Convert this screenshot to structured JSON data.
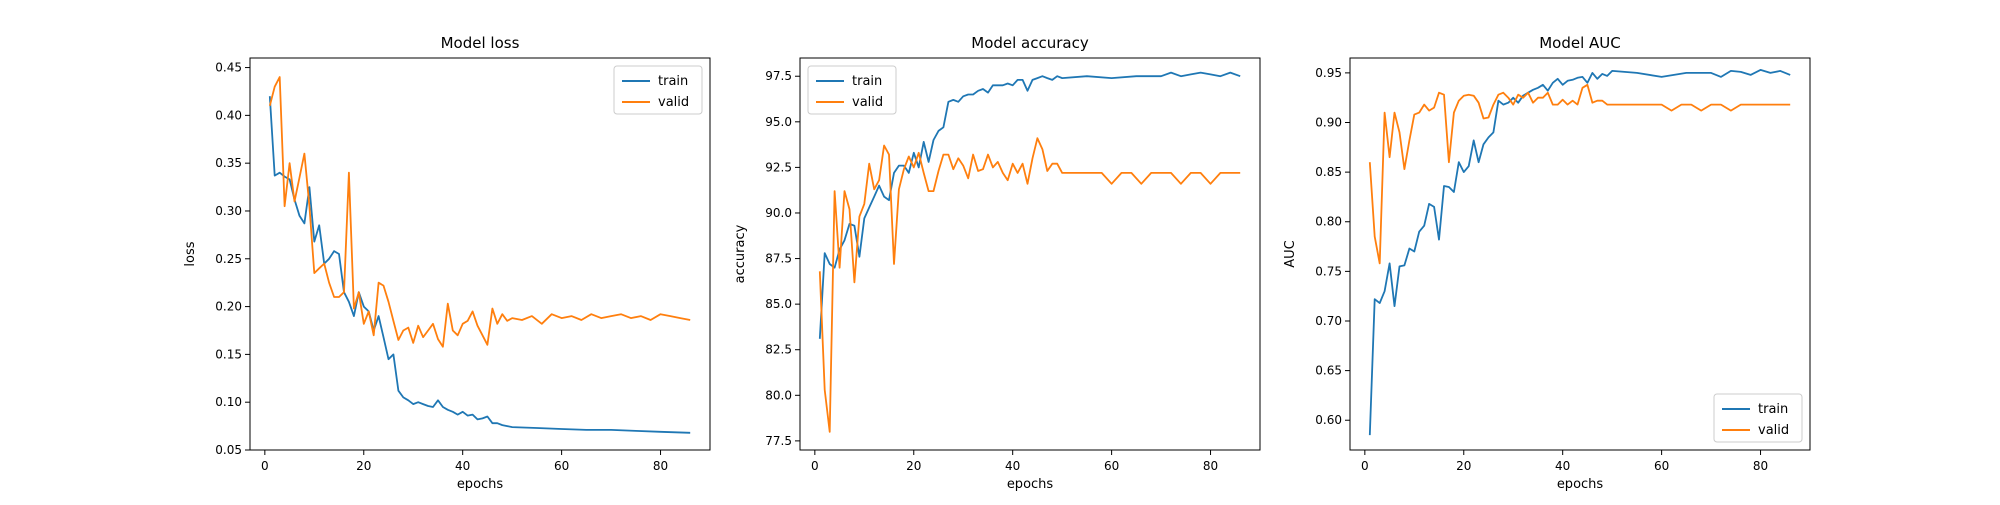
{
  "chart_data": [
    {
      "type": "line",
      "title": "Model loss",
      "xlabel": "epochs",
      "ylabel": "loss",
      "xlim": [
        -3,
        90
      ],
      "ylim": [
        0.05,
        0.46
      ],
      "xticks": [
        0,
        20,
        40,
        60,
        80
      ],
      "yticks": [
        0.05,
        0.1,
        0.15,
        0.2,
        0.25,
        0.3,
        0.35,
        0.4,
        0.45
      ],
      "yticklabels": [
        "0.05",
        "0.10",
        "0.15",
        "0.20",
        "0.25",
        "0.30",
        "0.35",
        "0.40",
        "0.45"
      ],
      "legend": "top-right",
      "series": [
        {
          "name": "train",
          "color": "#1f77b4",
          "x": [
            1,
            2,
            3,
            4,
            5,
            6,
            7,
            8,
            9,
            10,
            11,
            12,
            13,
            14,
            15,
            16,
            17,
            18,
            19,
            20,
            21,
            22,
            23,
            24,
            25,
            26,
            27,
            28,
            29,
            30,
            31,
            32,
            33,
            34,
            35,
            36,
            37,
            38,
            39,
            40,
            41,
            42,
            43,
            44,
            45,
            46,
            47,
            48,
            49,
            50,
            55,
            60,
            65,
            70,
            75,
            80,
            86
          ],
          "values": [
            0.42,
            0.337,
            0.34,
            0.336,
            0.333,
            0.312,
            0.295,
            0.287,
            0.325,
            0.268,
            0.285,
            0.245,
            0.25,
            0.258,
            0.255,
            0.215,
            0.205,
            0.19,
            0.215,
            0.2,
            0.195,
            0.175,
            0.19,
            0.168,
            0.145,
            0.15,
            0.112,
            0.105,
            0.102,
            0.098,
            0.1,
            0.098,
            0.096,
            0.095,
            0.102,
            0.095,
            0.092,
            0.09,
            0.087,
            0.09,
            0.086,
            0.087,
            0.082,
            0.083,
            0.085,
            0.078,
            0.078,
            0.076,
            0.075,
            0.074,
            0.073,
            0.072,
            0.071,
            0.071,
            0.07,
            0.069,
            0.068
          ]
        },
        {
          "name": "valid",
          "color": "#ff7f0e",
          "x": [
            1,
            2,
            3,
            4,
            5,
            6,
            7,
            8,
            9,
            10,
            11,
            12,
            13,
            14,
            15,
            16,
            17,
            18,
            19,
            20,
            21,
            22,
            23,
            24,
            25,
            26,
            27,
            28,
            29,
            30,
            31,
            32,
            33,
            34,
            35,
            36,
            37,
            38,
            39,
            40,
            41,
            42,
            43,
            44,
            45,
            46,
            47,
            48,
            49,
            50,
            52,
            54,
            56,
            58,
            60,
            62,
            64,
            66,
            68,
            70,
            72,
            74,
            76,
            78,
            80,
            82,
            84,
            86
          ],
          "values": [
            0.41,
            0.43,
            0.44,
            0.305,
            0.35,
            0.31,
            0.335,
            0.36,
            0.305,
            0.235,
            0.24,
            0.245,
            0.225,
            0.21,
            0.21,
            0.215,
            0.34,
            0.198,
            0.215,
            0.182,
            0.195,
            0.17,
            0.225,
            0.222,
            0.205,
            0.185,
            0.165,
            0.175,
            0.178,
            0.162,
            0.18,
            0.168,
            0.175,
            0.182,
            0.166,
            0.158,
            0.203,
            0.175,
            0.17,
            0.182,
            0.185,
            0.195,
            0.18,
            0.17,
            0.16,
            0.198,
            0.182,
            0.192,
            0.185,
            0.188,
            0.186,
            0.19,
            0.182,
            0.192,
            0.188,
            0.19,
            0.186,
            0.192,
            0.188,
            0.19,
            0.192,
            0.188,
            0.19,
            0.186,
            0.192,
            0.19,
            0.188,
            0.186
          ]
        }
      ]
    },
    {
      "type": "line",
      "title": "Model accuracy",
      "xlabel": "epochs",
      "ylabel": "accuracy",
      "xlim": [
        -3,
        90
      ],
      "ylim": [
        77,
        98.5
      ],
      "xticks": [
        0,
        20,
        40,
        60,
        80
      ],
      "yticks": [
        77.5,
        80.0,
        82.5,
        85.0,
        87.5,
        90.0,
        92.5,
        95.0,
        97.5
      ],
      "yticklabels": [
        "77.5",
        "80.0",
        "82.5",
        "85.0",
        "87.5",
        "90.0",
        "92.5",
        "95.0",
        "97.5"
      ],
      "legend": "top-left",
      "series": [
        {
          "name": "train",
          "color": "#1f77b4",
          "x": [
            1,
            2,
            3,
            4,
            5,
            6,
            7,
            8,
            9,
            10,
            11,
            12,
            13,
            14,
            15,
            16,
            17,
            18,
            19,
            20,
            21,
            22,
            23,
            24,
            25,
            26,
            27,
            28,
            29,
            30,
            31,
            32,
            33,
            34,
            35,
            36,
            37,
            38,
            39,
            40,
            41,
            42,
            43,
            44,
            45,
            46,
            47,
            48,
            49,
            50,
            55,
            60,
            65,
            70,
            72,
            74,
            76,
            78,
            80,
            82,
            84,
            86
          ],
          "values": [
            83.1,
            87.8,
            87.2,
            87.0,
            88.0,
            88.5,
            89.4,
            89.3,
            87.6,
            89.7,
            90.3,
            90.9,
            91.5,
            90.9,
            90.7,
            92.2,
            92.6,
            92.6,
            92.2,
            93.3,
            92.5,
            93.9,
            92.8,
            94.0,
            94.5,
            94.7,
            96.1,
            96.2,
            96.1,
            96.4,
            96.5,
            96.5,
            96.7,
            96.8,
            96.6,
            97.0,
            97.0,
            97.0,
            97.1,
            97.0,
            97.3,
            97.3,
            96.7,
            97.3,
            97.4,
            97.5,
            97.4,
            97.3,
            97.5,
            97.4,
            97.5,
            97.4,
            97.5,
            97.5,
            97.7,
            97.5,
            97.6,
            97.7,
            97.6,
            97.5,
            97.7,
            97.5
          ]
        },
        {
          "name": "valid",
          "color": "#ff7f0e",
          "x": [
            1,
            2,
            3,
            4,
            5,
            6,
            7,
            8,
            9,
            10,
            11,
            12,
            13,
            14,
            15,
            16,
            17,
            18,
            19,
            20,
            21,
            22,
            23,
            24,
            25,
            26,
            27,
            28,
            29,
            30,
            31,
            32,
            33,
            34,
            35,
            36,
            37,
            38,
            39,
            40,
            41,
            42,
            43,
            44,
            45,
            46,
            47,
            48,
            49,
            50,
            52,
            54,
            56,
            58,
            60,
            62,
            64,
            66,
            68,
            70,
            72,
            74,
            76,
            78,
            80,
            82,
            84,
            86
          ],
          "values": [
            86.8,
            80.3,
            78.0,
            91.2,
            87.0,
            91.2,
            90.2,
            86.2,
            89.8,
            90.5,
            92.7,
            91.3,
            91.8,
            93.7,
            93.2,
            87.2,
            91.3,
            92.4,
            93.1,
            92.5,
            93.3,
            92.2,
            91.2,
            91.2,
            92.3,
            93.2,
            93.2,
            92.4,
            93.0,
            92.6,
            91.9,
            93.2,
            92.3,
            92.4,
            93.2,
            92.5,
            92.8,
            92.2,
            91.8,
            92.7,
            92.2,
            92.7,
            91.6,
            93.0,
            94.1,
            93.5,
            92.3,
            92.7,
            92.7,
            92.2,
            92.2,
            92.2,
            92.2,
            92.2,
            91.6,
            92.2,
            92.2,
            91.6,
            92.2,
            92.2,
            92.2,
            91.6,
            92.2,
            92.2,
            91.6,
            92.2,
            92.2,
            92.2
          ]
        }
      ]
    },
    {
      "type": "line",
      "title": "Model AUC",
      "xlabel": "epochs",
      "ylabel": "AUC",
      "xlim": [
        -3,
        90
      ],
      "ylim": [
        0.57,
        0.965
      ],
      "xticks": [
        0,
        20,
        40,
        60,
        80
      ],
      "yticks": [
        0.6,
        0.65,
        0.7,
        0.75,
        0.8,
        0.85,
        0.9,
        0.95
      ],
      "yticklabels": [
        "0.60",
        "0.65",
        "0.70",
        "0.75",
        "0.80",
        "0.85",
        "0.90",
        "0.95"
      ],
      "legend": "bottom-right",
      "series": [
        {
          "name": "train",
          "color": "#1f77b4",
          "x": [
            1,
            2,
            3,
            4,
            5,
            6,
            7,
            8,
            9,
            10,
            11,
            12,
            13,
            14,
            15,
            16,
            17,
            18,
            19,
            20,
            21,
            22,
            23,
            24,
            25,
            26,
            27,
            28,
            29,
            30,
            31,
            32,
            33,
            34,
            35,
            36,
            37,
            38,
            39,
            40,
            41,
            42,
            43,
            44,
            45,
            46,
            47,
            48,
            49,
            50,
            55,
            60,
            65,
            70,
            72,
            74,
            76,
            78,
            80,
            82,
            84,
            86
          ],
          "values": [
            0.585,
            0.722,
            0.718,
            0.73,
            0.758,
            0.715,
            0.755,
            0.756,
            0.773,
            0.77,
            0.79,
            0.796,
            0.818,
            0.815,
            0.782,
            0.836,
            0.835,
            0.83,
            0.86,
            0.85,
            0.856,
            0.882,
            0.86,
            0.878,
            0.885,
            0.89,
            0.922,
            0.918,
            0.92,
            0.925,
            0.92,
            0.927,
            0.93,
            0.933,
            0.935,
            0.938,
            0.932,
            0.94,
            0.944,
            0.938,
            0.942,
            0.943,
            0.945,
            0.946,
            0.94,
            0.95,
            0.944,
            0.949,
            0.947,
            0.952,
            0.95,
            0.946,
            0.95,
            0.95,
            0.946,
            0.952,
            0.951,
            0.948,
            0.953,
            0.95,
            0.952,
            0.948
          ]
        },
        {
          "name": "valid",
          "color": "#ff7f0e",
          "x": [
            1,
            2,
            3,
            4,
            5,
            6,
            7,
            8,
            9,
            10,
            11,
            12,
            13,
            14,
            15,
            16,
            17,
            18,
            19,
            20,
            21,
            22,
            23,
            24,
            25,
            26,
            27,
            28,
            29,
            30,
            31,
            32,
            33,
            34,
            35,
            36,
            37,
            38,
            39,
            40,
            41,
            42,
            43,
            44,
            45,
            46,
            47,
            48,
            49,
            50,
            52,
            54,
            56,
            58,
            60,
            62,
            64,
            66,
            68,
            70,
            72,
            74,
            76,
            78,
            80,
            82,
            84,
            86
          ],
          "values": [
            0.86,
            0.785,
            0.758,
            0.91,
            0.865,
            0.91,
            0.89,
            0.853,
            0.882,
            0.908,
            0.91,
            0.918,
            0.912,
            0.915,
            0.93,
            0.928,
            0.86,
            0.91,
            0.922,
            0.927,
            0.928,
            0.927,
            0.92,
            0.904,
            0.905,
            0.918,
            0.928,
            0.93,
            0.925,
            0.918,
            0.928,
            0.925,
            0.93,
            0.92,
            0.925,
            0.925,
            0.93,
            0.918,
            0.918,
            0.923,
            0.918,
            0.922,
            0.918,
            0.935,
            0.938,
            0.92,
            0.922,
            0.922,
            0.918,
            0.918,
            0.918,
            0.918,
            0.918,
            0.918,
            0.918,
            0.912,
            0.918,
            0.918,
            0.912,
            0.918,
            0.918,
            0.912,
            0.918,
            0.918,
            0.918,
            0.918,
            0.918,
            0.918
          ]
        }
      ]
    }
  ]
}
